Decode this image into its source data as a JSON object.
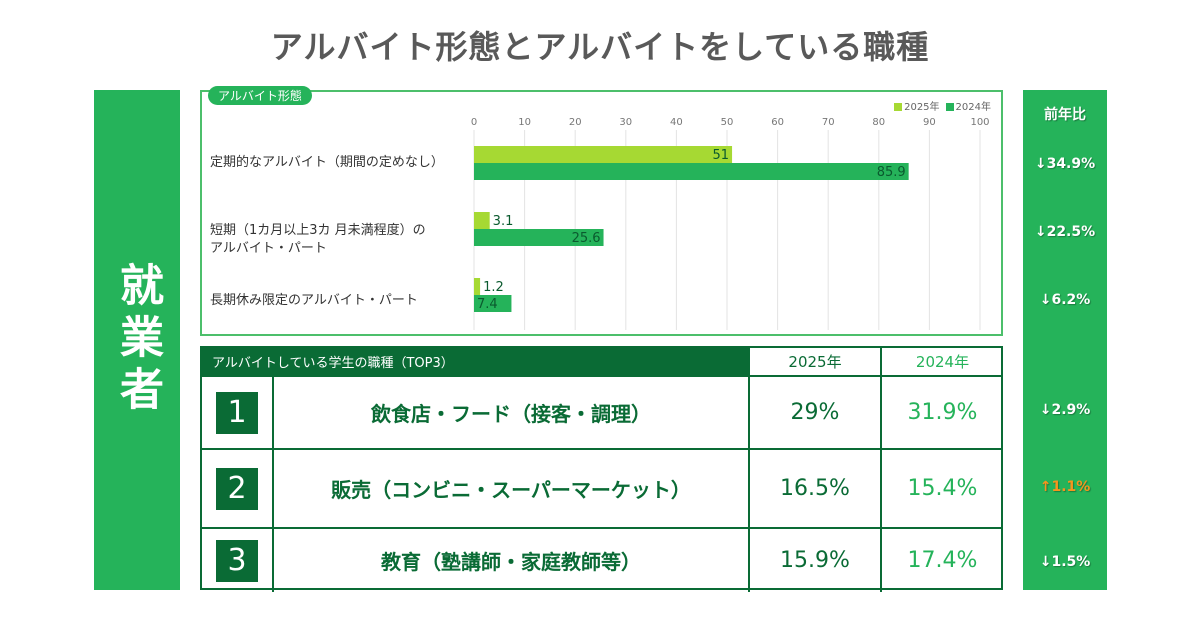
{
  "title": "アルバイト形態とアルバイトをしている職種",
  "side_label": "就業者",
  "colors": {
    "green": "#25b35a",
    "lime": "#a6d933",
    "dark_green": "#0a6b35",
    "orange": "#f7941d"
  },
  "chart_data": {
    "type": "bar",
    "orientation": "horizontal",
    "title": "アルバイト形態",
    "categories": [
      "定期的なアルバイト（期間の定めなし）",
      "短期（1カ月以上3カ 月未満程度）の アルバイト・パート",
      "長期休み限定のアルバイト・パート"
    ],
    "category_lines": [
      [
        "定期的なアルバイト（期間の定めなし）"
      ],
      [
        "短期（1カ月以上3カ 月未満程度）の",
        "アルバイト・パート"
      ],
      [
        "長期休み限定のアルバイト・パート"
      ]
    ],
    "series": [
      {
        "name": "2025年",
        "color": "#a6d933",
        "values": [
          51,
          3.1,
          1.2
        ]
      },
      {
        "name": "2024年",
        "color": "#25b35a",
        "values": [
          85.9,
          25.6,
          7.4
        ]
      }
    ],
    "xlim": [
      0,
      100
    ],
    "xticks": [
      "0",
      "10",
      "20",
      "30",
      "40",
      "50",
      "60",
      "70",
      "80",
      "90",
      "100"
    ],
    "grid": true,
    "legend": "top-right"
  },
  "table": {
    "header": "アルバイトしている学生の職種（TOP3）",
    "col_2025": "2025年",
    "col_2024": "2024年",
    "rows": [
      {
        "rank": "1",
        "job": "飲食店・フード（接客・調理）",
        "v2025": "29%",
        "v2024": "31.9%"
      },
      {
        "rank": "2",
        "job": "販売（コンビニ・スーパーマーケット）",
        "v2025": "16.5%",
        "v2024": "15.4%"
      },
      {
        "rank": "3",
        "job": "教育（塾講師・家庭教師等）",
        "v2025": "15.9%",
        "v2024": "17.4%"
      }
    ]
  },
  "yoy": {
    "header": "前年比",
    "items": [
      {
        "text": "↓34.9%",
        "direction": "down"
      },
      {
        "text": "↓22.5%",
        "direction": "down"
      },
      {
        "text": "↓6.2%",
        "direction": "down"
      },
      {
        "text": "↓2.9%",
        "direction": "down"
      },
      {
        "text": "↑1.1%",
        "direction": "up"
      },
      {
        "text": "↓1.5%",
        "direction": "down"
      }
    ]
  }
}
